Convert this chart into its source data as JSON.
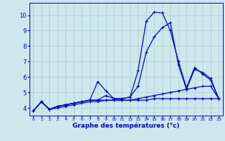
{
  "bg_color": "#cce8ec",
  "grid_color": "#aacccc",
  "line_color": "#0000cc",
  "xlabel": "Graphe des températures (°c)",
  "xlim": [
    -0.5,
    23.5
  ],
  "ylim": [
    3.5,
    10.8
  ],
  "yticks": [
    4,
    5,
    6,
    7,
    8,
    9,
    10
  ],
  "xticks": [
    0,
    1,
    2,
    3,
    4,
    5,
    6,
    7,
    8,
    9,
    10,
    11,
    12,
    13,
    14,
    15,
    16,
    17,
    18,
    19,
    20,
    21,
    22,
    23
  ],
  "curve1_x": [
    0,
    1,
    2,
    3,
    4,
    5,
    6,
    7,
    8,
    9,
    10,
    11,
    12,
    13,
    14,
    15,
    16,
    17,
    18,
    19,
    20,
    21,
    22,
    23
  ],
  "curve1_y": [
    3.8,
    4.4,
    3.9,
    4.1,
    4.2,
    4.3,
    4.4,
    4.5,
    4.5,
    4.5,
    4.5,
    4.5,
    4.5,
    4.5,
    4.5,
    4.6,
    4.6,
    4.6,
    4.6,
    4.6,
    4.6,
    4.6,
    4.6,
    4.6
  ],
  "curve2_x": [
    0,
    1,
    2,
    3,
    4,
    5,
    6,
    7,
    8,
    9,
    10,
    11,
    12,
    13,
    14,
    15,
    16,
    17,
    18,
    19,
    20,
    21,
    22,
    23
  ],
  "curve2_y": [
    3.8,
    4.4,
    3.9,
    4.1,
    4.2,
    4.3,
    4.4,
    4.5,
    5.7,
    5.1,
    4.6,
    4.6,
    4.7,
    6.4,
    9.6,
    10.2,
    10.15,
    9.0,
    7.0,
    5.3,
    6.6,
    6.2,
    5.8,
    4.6
  ],
  "curve3_x": [
    0,
    1,
    2,
    3,
    4,
    5,
    6,
    7,
    8,
    9,
    10,
    11,
    12,
    13,
    14,
    15,
    16,
    17,
    18,
    19,
    20,
    21,
    22,
    23
  ],
  "curve3_y": [
    3.8,
    4.4,
    3.9,
    4.1,
    4.2,
    4.3,
    4.4,
    4.5,
    4.5,
    4.8,
    4.6,
    4.6,
    4.7,
    5.4,
    7.6,
    8.6,
    9.2,
    9.5,
    6.8,
    5.2,
    6.5,
    6.3,
    5.9,
    4.6
  ],
  "curve4_x": [
    0,
    1,
    2,
    3,
    4,
    5,
    6,
    7,
    8,
    9,
    10,
    11,
    12,
    13,
    14,
    15,
    16,
    17,
    18,
    19,
    20,
    21,
    22,
    23
  ],
  "curve4_y": [
    3.8,
    4.4,
    3.9,
    4.0,
    4.1,
    4.2,
    4.3,
    4.4,
    4.4,
    4.5,
    4.5,
    4.5,
    4.5,
    4.6,
    4.7,
    4.8,
    4.9,
    5.0,
    5.1,
    5.2,
    5.3,
    5.4,
    5.4,
    4.6
  ]
}
